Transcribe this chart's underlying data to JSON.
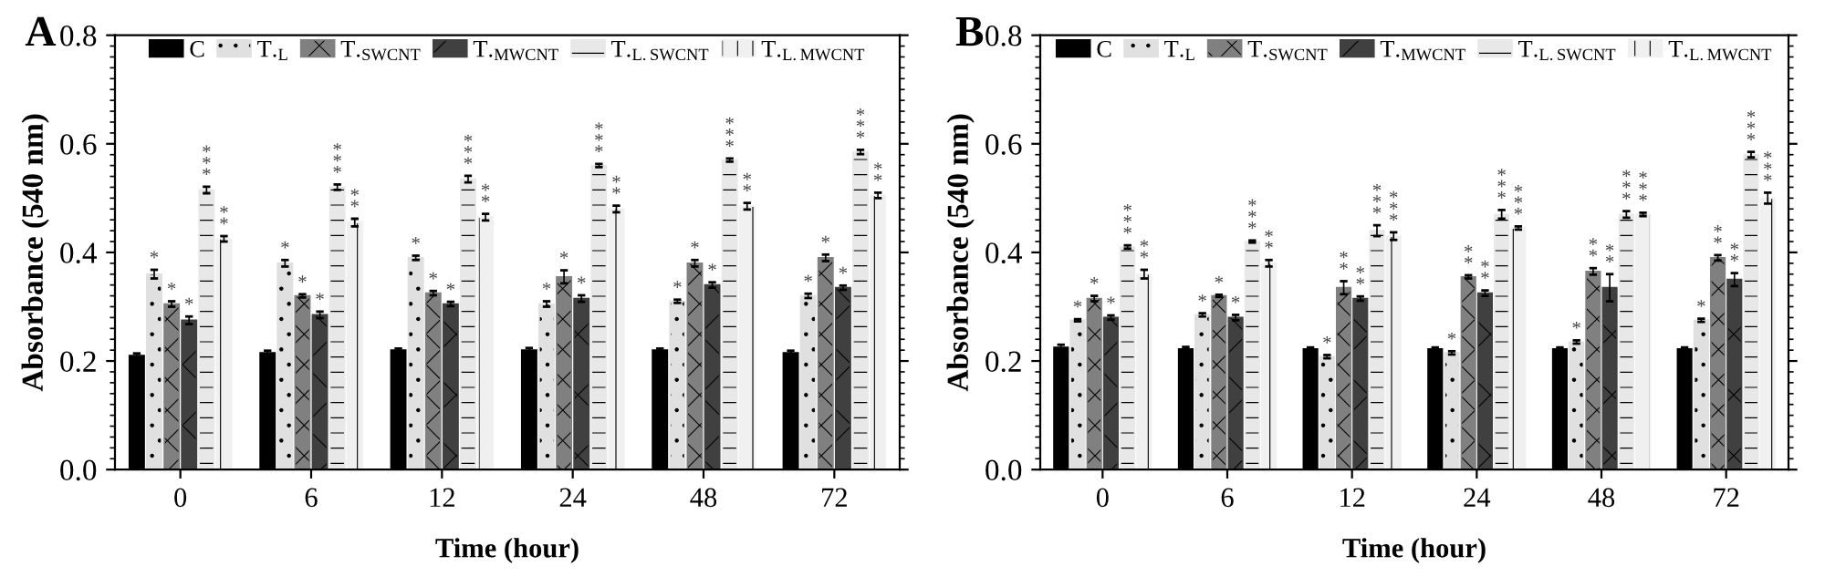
{
  "chart_data": [
    {
      "type": "bar",
      "title": "A",
      "xlabel": "Time (hour)",
      "ylabel": "Absorbance (540 nm)",
      "categories": [
        "0",
        "6",
        "12",
        "24",
        "48",
        "72"
      ],
      "ylim": [
        0,
        0.8
      ],
      "yticks": [
        {
          "value": 0,
          "label": "0.0"
        },
        {
          "value": 0.2,
          "label": "0.2"
        },
        {
          "value": 0.4,
          "label": "0.4"
        },
        {
          "value": 0.6,
          "label": "0.6"
        },
        {
          "value": 0.8,
          "label": "0.8"
        }
      ],
      "grid": false,
      "legend": "top",
      "series": [
        {
          "name": "C",
          "color": "#000000",
          "values": [
            0.21,
            0.215,
            0.22,
            0.22,
            0.22,
            0.215
          ],
          "errors": [
            0.004,
            0.004,
            0.003,
            0.004,
            0.003,
            0.004
          ]
        },
        {
          "name": "T.$_{L}$",
          "color": "#e0e0e0",
          "values": [
            0.36,
            0.38,
            0.39,
            0.305,
            0.31,
            0.32
          ],
          "errors": [
            0.008,
            0.006,
            0.004,
            0.005,
            0.003,
            0.004
          ],
          "value_labels": [
            "*",
            "*",
            "*",
            "*",
            "*",
            "*"
          ]
        },
        {
          "name": "T.$_{SWCNT}$",
          "color": "#808080",
          "values": [
            0.305,
            0.32,
            0.325,
            0.355,
            0.38,
            0.39
          ],
          "errors": [
            0.005,
            0.003,
            0.004,
            0.012,
            0.006,
            0.006
          ],
          "value_labels": [
            "*",
            "*",
            "*",
            "*",
            "*",
            "*"
          ]
        },
        {
          "name": "T.$_{MWCNT}$",
          "color": "#404040",
          "values": [
            0.275,
            0.285,
            0.305,
            0.315,
            0.34,
            0.335
          ],
          "errors": [
            0.007,
            0.006,
            0.004,
            0.006,
            0.005,
            0.004
          ],
          "value_labels": [
            "*",
            "*",
            "*",
            "*",
            "*",
            "*"
          ]
        },
        {
          "name": "T.$_{L.SWCNT}$",
          "color": "#e8e8e8",
          "values": [
            0.515,
            0.52,
            0.535,
            0.56,
            0.57,
            0.585
          ],
          "errors": [
            0.006,
            0.005,
            0.006,
            0.003,
            0.003,
            0.004
          ],
          "value_labels": [
            "***",
            "***",
            "***",
            "***",
            "***",
            "***"
          ]
        },
        {
          "name": "T.$_{L.MWCNT}$",
          "color": "#f0f0f0",
          "values": [
            0.425,
            0.455,
            0.465,
            0.48,
            0.485,
            0.505
          ],
          "errors": [
            0.005,
            0.007,
            0.006,
            0.006,
            0.006,
            0.005
          ],
          "value_labels": [
            "**",
            "**",
            "**",
            "**",
            "**",
            "**"
          ]
        }
      ]
    },
    {
      "type": "bar",
      "title": "B",
      "xlabel": "Time (hour)",
      "ylabel": "Absorbance (540 nm)",
      "categories": [
        "0",
        "6",
        "12",
        "24",
        "48",
        "72"
      ],
      "ylim": [
        0,
        0.8
      ],
      "yticks": [
        {
          "value": 0,
          "label": "0.0"
        },
        {
          "value": 0.2,
          "label": "0.2"
        },
        {
          "value": 0.4,
          "label": "0.4"
        },
        {
          "value": 0.6,
          "label": "0.6"
        },
        {
          "value": 0.8,
          "label": "0.8"
        }
      ],
      "grid": false,
      "legend": "top",
      "series": [
        {
          "name": "C",
          "color": "#000000",
          "values": [
            0.225,
            0.222,
            0.222,
            0.222,
            0.222,
            0.222
          ],
          "errors": [
            0.005,
            0.004,
            0.003,
            0.003,
            0.003,
            0.003
          ]
        },
        {
          "name": "T.$_{L}$",
          "color": "#e0e0e0",
          "values": [
            0.275,
            0.285,
            0.208,
            0.215,
            0.235,
            0.275
          ],
          "errors": [
            0.002,
            0.003,
            0.003,
            0.003,
            0.003,
            0.003
          ],
          "value_labels": [
            "*",
            "*",
            "*",
            "*",
            "*",
            "*"
          ]
        },
        {
          "name": "T.$_{SWCNT}$",
          "color": "#808080",
          "values": [
            0.315,
            0.32,
            0.335,
            0.355,
            0.365,
            0.39
          ],
          "errors": [
            0.005,
            0.002,
            0.012,
            0.003,
            0.006,
            0.005
          ],
          "value_labels": [
            "*",
            "*",
            "**",
            "**",
            "**",
            "**"
          ]
        },
        {
          "name": "T.$_{MWCNT}$",
          "color": "#404040",
          "values": [
            0.28,
            0.28,
            0.315,
            0.325,
            0.335,
            0.35
          ],
          "errors": [
            0.004,
            0.005,
            0.004,
            0.005,
            0.025,
            0.012
          ],
          "value_labels": [
            "*",
            "*",
            "**",
            "**",
            "**",
            "**"
          ]
        },
        {
          "name": "T.$_{L.SWCNT}$",
          "color": "#e8e8e8",
          "values": [
            0.41,
            0.42,
            0.44,
            0.47,
            0.47,
            0.58
          ],
          "errors": [
            0.003,
            0.002,
            0.01,
            0.008,
            0.006,
            0.005
          ],
          "value_labels": [
            "***",
            "***",
            "***",
            "***",
            "***",
            "***"
          ]
        },
        {
          "name": "T.$_{L.MWCNT}$",
          "color": "#f0f0f0",
          "values": [
            0.36,
            0.38,
            0.43,
            0.445,
            0.47,
            0.5
          ],
          "errors": [
            0.008,
            0.006,
            0.007,
            0.003,
            0.003,
            0.01
          ],
          "value_labels": [
            "**",
            "**",
            "***",
            "***",
            "***",
            "***"
          ]
        }
      ]
    }
  ]
}
